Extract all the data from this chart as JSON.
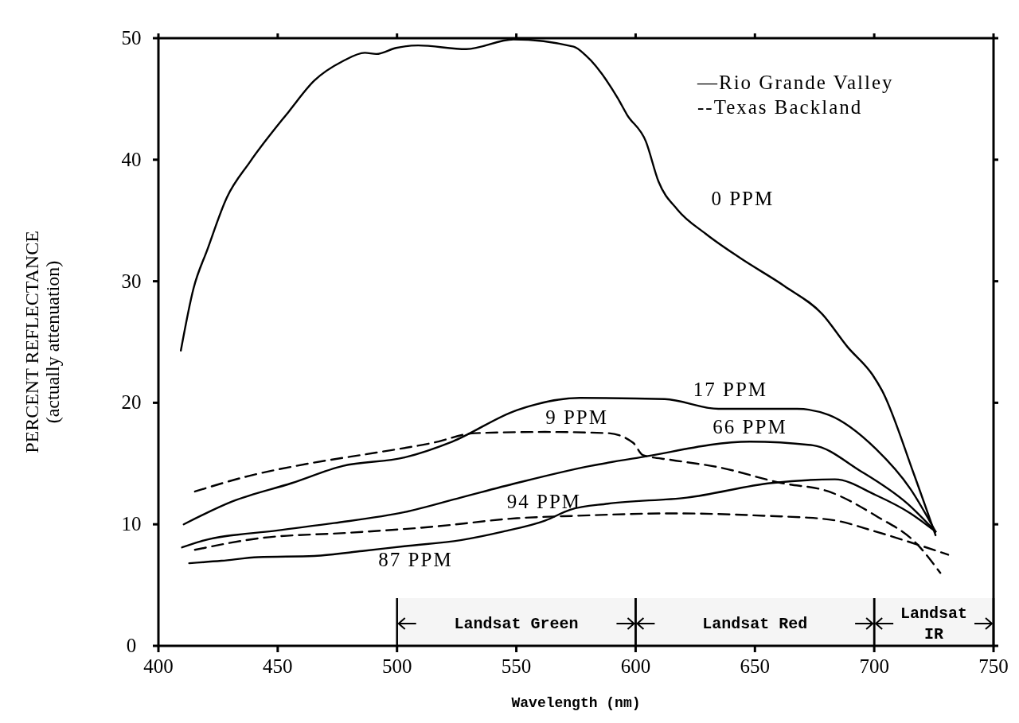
{
  "chart_data": {
    "type": "line",
    "xlabel": "Wavelength (nm)",
    "ylabel": "PERCENT REFLECTANCE\n(actually attenuation)",
    "xlim": [
      400,
      750
    ],
    "xticks": [
      400,
      450,
      500,
      550,
      600,
      650,
      700,
      750
    ],
    "ylim": [
      0,
      50
    ],
    "yticks": [
      0,
      10,
      20,
      30,
      40,
      50
    ],
    "grid": false,
    "marker": "none",
    "series": [
      {
        "name": "0 PPM",
        "color": "#000000",
        "line_style": "solid",
        "x": [
          409.4,
          414.7,
          420.5,
          428.7,
          438.3,
          454.8,
          465.3,
          477.2,
          486.5,
          491.3,
          499.6,
          508.9,
          529,
          548.8,
          574,
          579,
          592.4,
          596.4,
          604.3,
          609.6,
          617.5,
          629.4,
          643.9,
          662.4,
          678.2,
          688.8,
          699.3,
          703.3,
          716.5,
          725.7
        ],
        "values": [
          24.3,
          29.4,
          32.6,
          36.9,
          39.8,
          44.0,
          46.5,
          48.1,
          48.8,
          48.7,
          49.2,
          49.4,
          49.1,
          49.9,
          49.3,
          48.6,
          45.1,
          43.7,
          41.5,
          38.2,
          35.9,
          33.9,
          31.9,
          29.6,
          27.3,
          24.6,
          22.3,
          21.0,
          14.2,
          9.1
        ]
      },
      {
        "name": "17 PPM",
        "color": "#000000",
        "line_style": "solid",
        "x": [
          410.6,
          431.2,
          456,
          477.2,
          503.1,
          523.1,
          550.3,
          576.6,
          612.2,
          634.7,
          667.7,
          680.9,
          700.7,
          715.2,
          725.7
        ],
        "values": [
          10.0,
          11.9,
          13.4,
          14.8,
          15.5,
          16.8,
          19.4,
          20.4,
          20.3,
          19.5,
          19.5,
          19.0,
          16.2,
          12.9,
          9.4
        ]
      },
      {
        "name": "66 PPM",
        "color": "#000000",
        "line_style": "solid",
        "x": [
          409.9,
          417.7,
          450,
          473.6,
          503.1,
          526.7,
          550.2,
          580.9,
          601.7,
          647.9,
          674.3,
          694.1,
          713.9,
          725.7
        ],
        "values": [
          8.1,
          8.6,
          9.5,
          10.1,
          11.0,
          12.2,
          13.4,
          14.8,
          15.5,
          16.8,
          16.5,
          14.4,
          11.7,
          9.4
        ]
      },
      {
        "name": "87 PPM",
        "color": "#000000",
        "line_style": "solid",
        "x": [
          412.9,
          426.4,
          441.8,
          465.3,
          485.5,
          503.1,
          526.7,
          544.4,
          562,
          572.6,
          588.4,
          621.5,
          657.1,
          683.5,
          700.7,
          715.2,
          725.7
        ],
        "values": [
          6.8,
          7.0,
          7.3,
          7.4,
          7.8,
          8.2,
          8.7,
          9.4,
          10.3,
          11.2,
          11.7,
          12.2,
          13.4,
          13.7,
          12.4,
          10.9,
          9.4
        ]
      },
      {
        "name": "9 PPM",
        "color": "#000000",
        "line_style": "dashed",
        "x": [
          415.3,
          438.3,
          463,
          491.3,
          514.9,
          532.6,
          562,
          588.4,
          599,
          603,
          614.9,
          634.7,
          661,
          680.9,
          700.7,
          717.8,
          727.7
        ],
        "values": [
          12.7,
          14.0,
          15.0,
          15.9,
          16.7,
          17.5,
          17.6,
          17.5,
          16.7,
          15.7,
          15.3,
          14.7,
          13.4,
          12.7,
          10.7,
          8.4,
          6.0
        ]
      },
      {
        "name": "94 PPM",
        "color": "#000000",
        "line_style": "dashed",
        "x": [
          415.3,
          444.2,
          479.5,
          514.9,
          550.3,
          575.2,
          614.9,
          654.5,
          680.9,
          700.7,
          713.9,
          731
        ],
        "values": [
          7.9,
          8.9,
          9.3,
          9.8,
          10.5,
          10.7,
          10.9,
          10.7,
          10.4,
          9.4,
          8.6,
          7.5
        ]
      }
    ],
    "annotations": [
      "—Rio Grande Valley",
      "--Texas Backland"
    ],
    "bands": [
      {
        "axis": "x",
        "from": 500,
        "to": 600,
        "label": "Landsat Green"
      },
      {
        "axis": "x",
        "from": 600,
        "to": 700,
        "label": "Landsat Red"
      },
      {
        "axis": "x",
        "from": 700,
        "to": 750,
        "label": "Landsat\nIR"
      }
    ]
  }
}
